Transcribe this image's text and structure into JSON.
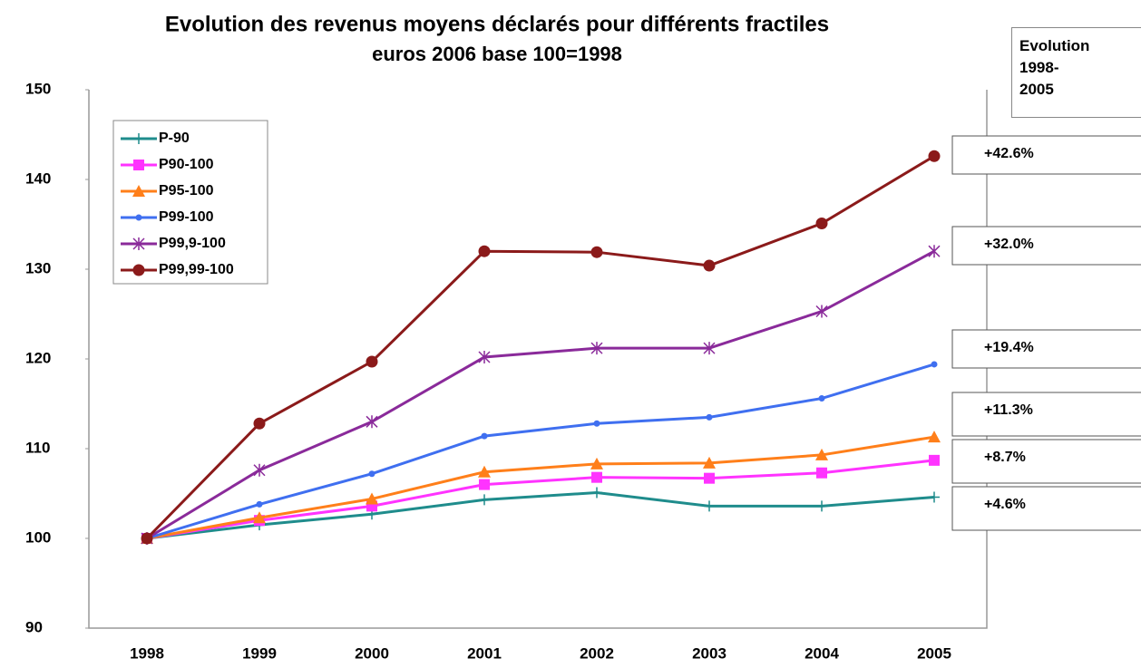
{
  "chart_data": {
    "type": "line",
    "title": "Evolution des revenus moyens déclarés pour différents fractiles",
    "subtitle": "euros 2006 base 100=1998",
    "categories": [
      "1998",
      "1999",
      "2000",
      "2001",
      "2002",
      "2003",
      "2004",
      "2005"
    ],
    "series": [
      {
        "name": "P-90",
        "color": "#1f8c8c",
        "marker": "plus",
        "values": [
          100,
          101.5,
          102.7,
          104.3,
          105.1,
          103.6,
          103.6,
          104.6
        ]
      },
      {
        "name": "P90-100",
        "color": "#ff33ff",
        "marker": "square",
        "values": [
          100,
          102,
          103.6,
          106,
          106.8,
          106.7,
          107.3,
          108.7
        ]
      },
      {
        "name": "P95-100",
        "color": "#ff7f1a",
        "marker": "triangle",
        "values": [
          100,
          102.3,
          104.4,
          107.4,
          108.3,
          108.4,
          109.3,
          111.3
        ]
      },
      {
        "name": "P99-100",
        "color": "#3f6ff0",
        "marker": "dot",
        "values": [
          100,
          103.8,
          107.2,
          111.4,
          112.8,
          113.5,
          115.6,
          119.4
        ]
      },
      {
        "name": "P99,9-100",
        "color": "#8a2a9a",
        "marker": "star",
        "values": [
          100,
          107.6,
          113,
          120.2,
          121.2,
          121.2,
          125.3,
          132
        ]
      },
      {
        "name": "P99,99-100",
        "color": "#8b1a1a",
        "marker": "circle",
        "values": [
          100,
          112.8,
          119.7,
          132,
          131.9,
          130.4,
          135.1,
          142.6
        ]
      }
    ],
    "ylim": [
      90,
      150
    ],
    "yticks": [
      90,
      100,
      110,
      120,
      130,
      140,
      150
    ],
    "legend": "top-left",
    "annotation_title": "Evolution 1998-2005",
    "annotations": [
      "+42.6%",
      "+32.0%",
      "+19.4%",
      "+11.3%",
      "+8.7%",
      "+4.6%"
    ]
  }
}
